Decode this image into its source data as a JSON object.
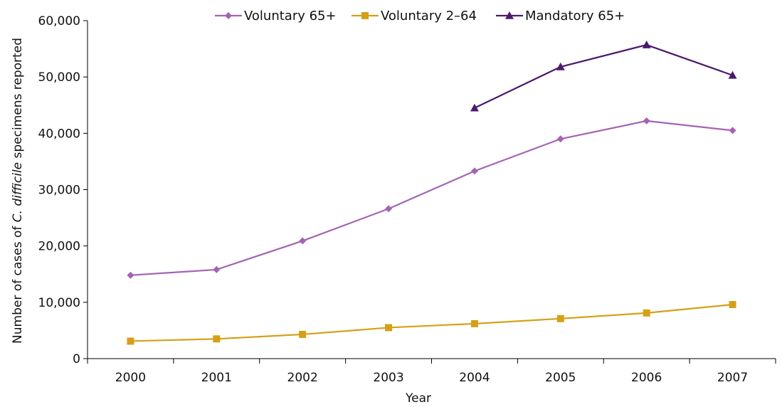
{
  "chart_data": {
    "type": "line",
    "title": "",
    "xlabel": "Year",
    "ylabel": {
      "before": "Number of cases of ",
      "italic": "C. difficile",
      "after": " specimens reported"
    },
    "x": [
      "2000",
      "2001",
      "2002",
      "2003",
      "2004",
      "2005",
      "2006",
      "2007"
    ],
    "ylim": [
      0,
      60000
    ],
    "yticks": [
      0,
      10000,
      20000,
      30000,
      40000,
      50000,
      60000
    ],
    "ytick_labels": [
      "0",
      "10,000",
      "20,000",
      "30,000",
      "40,000",
      "50,000",
      "60,000"
    ],
    "grid": false,
    "legend_position": "top",
    "series": [
      {
        "name": "Voluntary 65+",
        "color": "#a463b4",
        "marker": "diamond",
        "values": [
          14800,
          15800,
          20900,
          26600,
          33300,
          39000,
          42200,
          40500
        ]
      },
      {
        "name": "Voluntary 2–64",
        "color": "#d4a017",
        "marker": "square",
        "values": [
          3100,
          3500,
          4300,
          5500,
          6200,
          7100,
          8100,
          9600
        ]
      },
      {
        "name": "Mandatory 65+",
        "color": "#4b1a6e",
        "marker": "triangle",
        "values": [
          null,
          null,
          null,
          null,
          44500,
          51800,
          55700,
          50300
        ]
      }
    ]
  }
}
